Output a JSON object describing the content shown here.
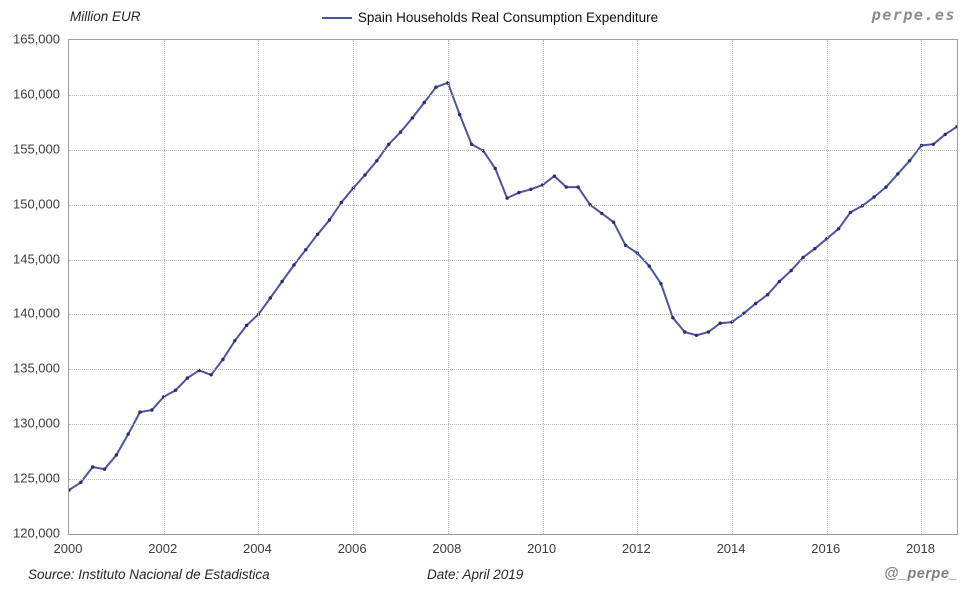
{
  "header": {
    "unit_label": "Million EUR",
    "legend_label": "Spain Households Real Consumption Expenditure",
    "brand": "perpe.es"
  },
  "footer": {
    "source": "Source: Instituto Nacional de Estadistica",
    "date": "Date: April 2019",
    "handle": "@_perpe_"
  },
  "chart_data": {
    "type": "line",
    "title": "Spain Households Real Consumption Expenditure",
    "ylabel": "Million EUR",
    "xlabel": "",
    "grid": "dotted",
    "legend_position": "top-center",
    "x_start": 2000,
    "x_step": 0.25,
    "x_end": 2018.75,
    "x_tick_years": [
      2000,
      2002,
      2004,
      2006,
      2008,
      2010,
      2012,
      2014,
      2016,
      2018
    ],
    "ylim": [
      120000,
      165000
    ],
    "y_tick_step": 5000,
    "line_color": "#5052a2",
    "marker_color": "#2c2c6e",
    "series": [
      {
        "name": "Spain Households Real Consumption Expenditure",
        "frequency": "quarterly",
        "values": [
          124000,
          124700,
          126100,
          125900,
          127200,
          129100,
          131100,
          131300,
          132500,
          133100,
          134200,
          134900,
          134500,
          135900,
          137600,
          139000,
          140000,
          141500,
          143000,
          144500,
          145900,
          147300,
          148600,
          150200,
          151500,
          152700,
          154000,
          155500,
          156600,
          157900,
          159300,
          160700,
          161100,
          158200,
          155500,
          154900,
          153300,
          150600,
          151100,
          151400,
          151800,
          152600,
          151600,
          151600,
          150000,
          149200,
          148400,
          146300,
          145600,
          144400,
          142800,
          139700,
          138400,
          138100,
          138400,
          139200,
          139300,
          140100,
          141000,
          141800,
          143000,
          144000,
          145200,
          146000,
          146900,
          147800,
          149300,
          149900,
          150700,
          151600,
          152800,
          154000,
          155400,
          155500,
          156400,
          157100
        ]
      }
    ]
  }
}
